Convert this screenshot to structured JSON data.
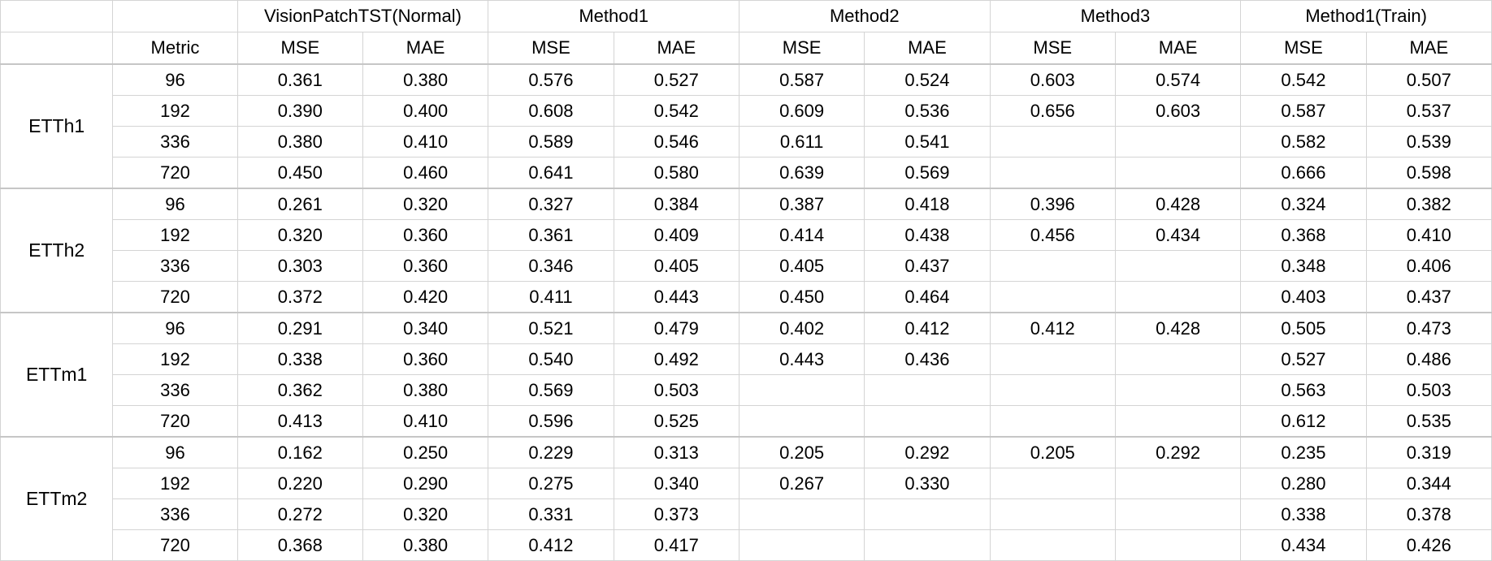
{
  "header": {
    "methods": [
      "VisionPatchTST(Normal)",
      "Method1",
      "Method2",
      "Method3",
      "Method1(Train)"
    ],
    "metric_label": "Metric",
    "sub": [
      "MSE",
      "MAE",
      "MSE",
      "MAE",
      "MSE",
      "MAE",
      "MSE",
      "MAE",
      "MSE",
      "MAE"
    ]
  },
  "groups": [
    {
      "dataset": "ETTh1",
      "rows": [
        {
          "horizon": "96",
          "values": [
            "0.361",
            "0.380",
            "0.576",
            "0.527",
            "0.587",
            "0.524",
            "0.603",
            "0.574",
            "0.542",
            "0.507"
          ]
        },
        {
          "horizon": "192",
          "values": [
            "0.390",
            "0.400",
            "0.608",
            "0.542",
            "0.609",
            "0.536",
            "0.656",
            "0.603",
            "0.587",
            "0.537"
          ]
        },
        {
          "horizon": "336",
          "values": [
            "0.380",
            "0.410",
            "0.589",
            "0.546",
            "0.611",
            "0.541",
            "",
            "",
            "0.582",
            "0.539"
          ]
        },
        {
          "horizon": "720",
          "values": [
            "0.450",
            "0.460",
            "0.641",
            "0.580",
            "0.639",
            "0.569",
            "",
            "",
            "0.666",
            "0.598"
          ]
        }
      ]
    },
    {
      "dataset": "ETTh2",
      "rows": [
        {
          "horizon": "96",
          "values": [
            "0.261",
            "0.320",
            "0.327",
            "0.384",
            "0.387",
            "0.418",
            "0.396",
            "0.428",
            "0.324",
            "0.382"
          ]
        },
        {
          "horizon": "192",
          "values": [
            "0.320",
            "0.360",
            "0.361",
            "0.409",
            "0.414",
            "0.438",
            "0.456",
            "0.434",
            "0.368",
            "0.410"
          ]
        },
        {
          "horizon": "336",
          "values": [
            "0.303",
            "0.360",
            "0.346",
            "0.405",
            "0.405",
            "0.437",
            "",
            "",
            "0.348",
            "0.406"
          ]
        },
        {
          "horizon": "720",
          "values": [
            "0.372",
            "0.420",
            "0.411",
            "0.443",
            "0.450",
            "0.464",
            "",
            "",
            "0.403",
            "0.437"
          ]
        }
      ]
    },
    {
      "dataset": "ETTm1",
      "rows": [
        {
          "horizon": "96",
          "values": [
            "0.291",
            "0.340",
            "0.521",
            "0.479",
            "0.402",
            "0.412",
            "0.412",
            "0.428",
            "0.505",
            "0.473"
          ]
        },
        {
          "horizon": "192",
          "values": [
            "0.338",
            "0.360",
            "0.540",
            "0.492",
            "0.443",
            "0.436",
            "",
            "",
            "0.527",
            "0.486"
          ]
        },
        {
          "horizon": "336",
          "values": [
            "0.362",
            "0.380",
            "0.569",
            "0.503",
            "",
            "",
            "",
            "",
            "0.563",
            "0.503"
          ]
        },
        {
          "horizon": "720",
          "values": [
            "0.413",
            "0.410",
            "0.596",
            "0.525",
            "",
            "",
            "",
            "",
            "0.612",
            "0.535"
          ]
        }
      ]
    },
    {
      "dataset": "ETTm2",
      "rows": [
        {
          "horizon": "96",
          "values": [
            "0.162",
            "0.250",
            "0.229",
            "0.313",
            "0.205",
            "0.292",
            "0.205",
            "0.292",
            "0.235",
            "0.319"
          ]
        },
        {
          "horizon": "192",
          "values": [
            "0.220",
            "0.290",
            "0.275",
            "0.340",
            "0.267",
            "0.330",
            "",
            "",
            "0.280",
            "0.344"
          ]
        },
        {
          "horizon": "336",
          "values": [
            "0.272",
            "0.320",
            "0.331",
            "0.373",
            "",
            "",
            "",
            "",
            "0.338",
            "0.378"
          ]
        },
        {
          "horizon": "720",
          "values": [
            "0.368",
            "0.380",
            "0.412",
            "0.417",
            "",
            "",
            "",
            "",
            "0.434",
            "0.426"
          ]
        }
      ]
    }
  ]
}
